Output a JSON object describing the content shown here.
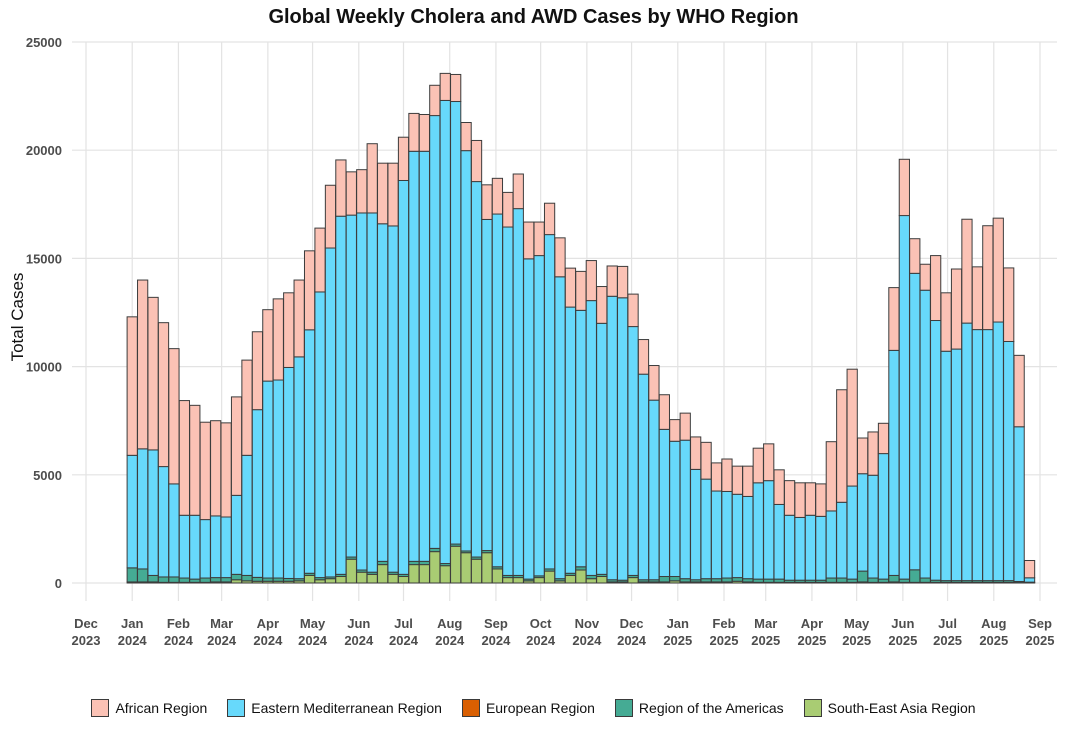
{
  "chart_data": {
    "type": "bar",
    "stacked": true,
    "title": "Global Weekly Cholera and AWD Cases by WHO Region",
    "ylabel": "Total Cases",
    "xlabel": "",
    "ylim": [
      0,
      25000
    ],
    "yticks": [
      0,
      5000,
      10000,
      15000,
      20000,
      25000
    ],
    "x_ticks": [
      {
        "label": "Dec\n2023",
        "date": "2023-12-01"
      },
      {
        "label": "Jan\n2024",
        "date": "2024-01-01"
      },
      {
        "label": "Feb\n2024",
        "date": "2024-02-01"
      },
      {
        "label": "Mar\n2024",
        "date": "2024-03-01"
      },
      {
        "label": "Apr\n2024",
        "date": "2024-04-01"
      },
      {
        "label": "May\n2024",
        "date": "2024-05-01"
      },
      {
        "label": "Jun\n2024",
        "date": "2024-06-01"
      },
      {
        "label": "Jul\n2024",
        "date": "2024-07-01"
      },
      {
        "label": "Aug\n2024",
        "date": "2024-08-01"
      },
      {
        "label": "Sep\n2024",
        "date": "2024-09-01"
      },
      {
        "label": "Oct\n2024",
        "date": "2024-10-01"
      },
      {
        "label": "Nov\n2024",
        "date": "2024-11-01"
      },
      {
        "label": "Dec\n2024",
        "date": "2024-12-01"
      },
      {
        "label": "Jan\n2025",
        "date": "2025-01-01"
      },
      {
        "label": "Feb\n2025",
        "date": "2025-02-01"
      },
      {
        "label": "Mar\n2025",
        "date": "2025-03-01"
      },
      {
        "label": "Apr\n2025",
        "date": "2025-04-01"
      },
      {
        "label": "May\n2025",
        "date": "2025-05-01"
      },
      {
        "label": "Jun\n2025",
        "date": "2025-06-01"
      },
      {
        "label": "Jul\n2025",
        "date": "2025-07-01"
      },
      {
        "label": "Aug\n2025",
        "date": "2025-08-01"
      },
      {
        "label": "Sep\n2025",
        "date": "2025-09-01"
      }
    ],
    "grid": true,
    "legend_position": "bottom",
    "x_start_date": "2024-01-01",
    "x_step_days": 7,
    "series": [
      {
        "name": "South-East Asia Region",
        "color": "#a9cc73",
        "values": [
          50,
          50,
          50,
          30,
          30,
          30,
          30,
          30,
          50,
          50,
          150,
          100,
          80,
          80,
          80,
          80,
          100,
          350,
          150,
          200,
          300,
          1100,
          500,
          400,
          850,
          400,
          300,
          850,
          850,
          1450,
          800,
          1700,
          1400,
          1100,
          1400,
          650,
          250,
          250,
          100,
          250,
          550,
          100,
          350,
          600,
          200,
          300,
          50,
          50,
          250,
          50,
          50,
          50,
          100,
          50,
          50,
          50,
          50,
          50,
          80,
          50,
          30,
          30,
          30,
          30,
          30,
          30,
          30,
          30,
          30,
          30,
          50,
          30,
          30,
          50,
          30,
          30,
          30,
          30,
          30,
          30,
          30,
          30,
          30,
          30
        ]
      },
      {
        "name": "Region of the Americas",
        "color": "#45ab94",
        "values": [
          650,
          600,
          300,
          250,
          250,
          200,
          150,
          200,
          200,
          200,
          250,
          250,
          180,
          150,
          150,
          130,
          100,
          100,
          100,
          80,
          100,
          100,
          100,
          100,
          150,
          100,
          100,
          150,
          150,
          150,
          100,
          100,
          80,
          100,
          100,
          100,
          100,
          100,
          80,
          80,
          100,
          100,
          100,
          150,
          150,
          100,
          100,
          80,
          100,
          100,
          100,
          250,
          200,
          150,
          100,
          150,
          150,
          180,
          170,
          150,
          150,
          150,
          150,
          100,
          100,
          100,
          100,
          200,
          200,
          150,
          500,
          200,
          150,
          300,
          150,
          580,
          200,
          100,
          80,
          80,
          80,
          80,
          80,
          80
        ]
      },
      {
        "name": "European Region",
        "color": "#d95f02",
        "values": [
          0,
          0,
          0,
          0,
          0,
          0,
          0,
          0,
          0,
          0,
          0,
          0,
          0,
          0,
          0,
          0,
          0,
          0,
          0,
          0,
          0,
          0,
          0,
          0,
          0,
          0,
          0,
          0,
          0,
          0,
          0,
          0,
          0,
          0,
          0,
          0,
          0,
          0,
          0,
          0,
          0,
          0,
          0,
          0,
          0,
          0,
          0,
          0,
          0,
          0,
          0,
          0,
          0,
          0,
          0,
          0,
          0,
          0,
          0,
          0,
          0,
          0,
          0,
          0,
          0,
          0,
          0,
          0,
          0,
          0,
          0,
          0,
          0,
          0,
          0,
          0,
          0,
          0,
          0,
          0,
          0,
          0,
          0,
          0
        ]
      },
      {
        "name": "Eastern Mediterranean Region",
        "color": "#67d9fb",
        "values": [
          5200,
          5550,
          5800,
          5100,
          4300,
          2900,
          2950,
          2700,
          2850,
          2800,
          3650,
          5550,
          7750,
          9100,
          9150,
          9750,
          10250,
          11250,
          13200,
          15200,
          16550,
          15800,
          16500,
          16600,
          15600,
          16000,
          18200,
          18950,
          18950,
          20000,
          21400,
          20450,
          18500,
          17350,
          15300,
          16300,
          16100,
          16950,
          14800,
          14800,
          15450,
          13950,
          12300,
          11850,
          12700,
          11600,
          13100,
          13050,
          11500,
          9500,
          8300,
          6800,
          6250,
          6400,
          5100,
          4600,
          4050,
          4000,
          3850,
          3800,
          4450,
          4550,
          3450,
          3000,
          2900,
          3000,
          2950,
          3100,
          3500,
          4300,
          4500,
          4750,
          5800,
          10400,
          16800,
          13700,
          13300,
          12000,
          10600,
          10700,
          11900,
          11600,
          11600,
          11950
        ]
      },
      {
        "name": "African Region",
        "color": "#fbc2b5",
        "values": [
          6400,
          7800,
          7050,
          6650,
          6250,
          5300,
          5080,
          4500,
          4400,
          4350,
          4550,
          4400,
          3600,
          3300,
          3750,
          3450,
          3550,
          3650,
          2950,
          2900,
          2600,
          2000,
          2000,
          3200,
          2800,
          2900,
          2000,
          1750,
          1700,
          1400,
          1250,
          1250,
          1300,
          1900,
          1600,
          1650,
          1600,
          1600,
          1700,
          1550,
          1450,
          1800,
          1800,
          1800,
          1850,
          1700,
          1400,
          1450,
          1500,
          1600,
          1600,
          1600,
          1000,
          1250,
          1500,
          1700,
          1300,
          1500,
          1300,
          1400,
          1600,
          1700,
          1600,
          1600,
          1600,
          1500,
          1500,
          3200,
          5200,
          5400,
          1650,
          2000,
          1400,
          2900,
          2600,
          1600,
          1200,
          3000,
          2700,
          3700,
          4800,
          2900,
          4800,
          4800
        ]
      }
    ],
    "extra_bars_note": "",
    "tail_values": {
      "African Region": [
        3400,
        3300,
        800
      ],
      "Eastern Mediterranean Region": [
        11050,
        7150,
        200
      ],
      "Region of the Americas": [
        80,
        50,
        30
      ],
      "South-East Asia Region": [
        30,
        20,
        10
      ]
    }
  }
}
